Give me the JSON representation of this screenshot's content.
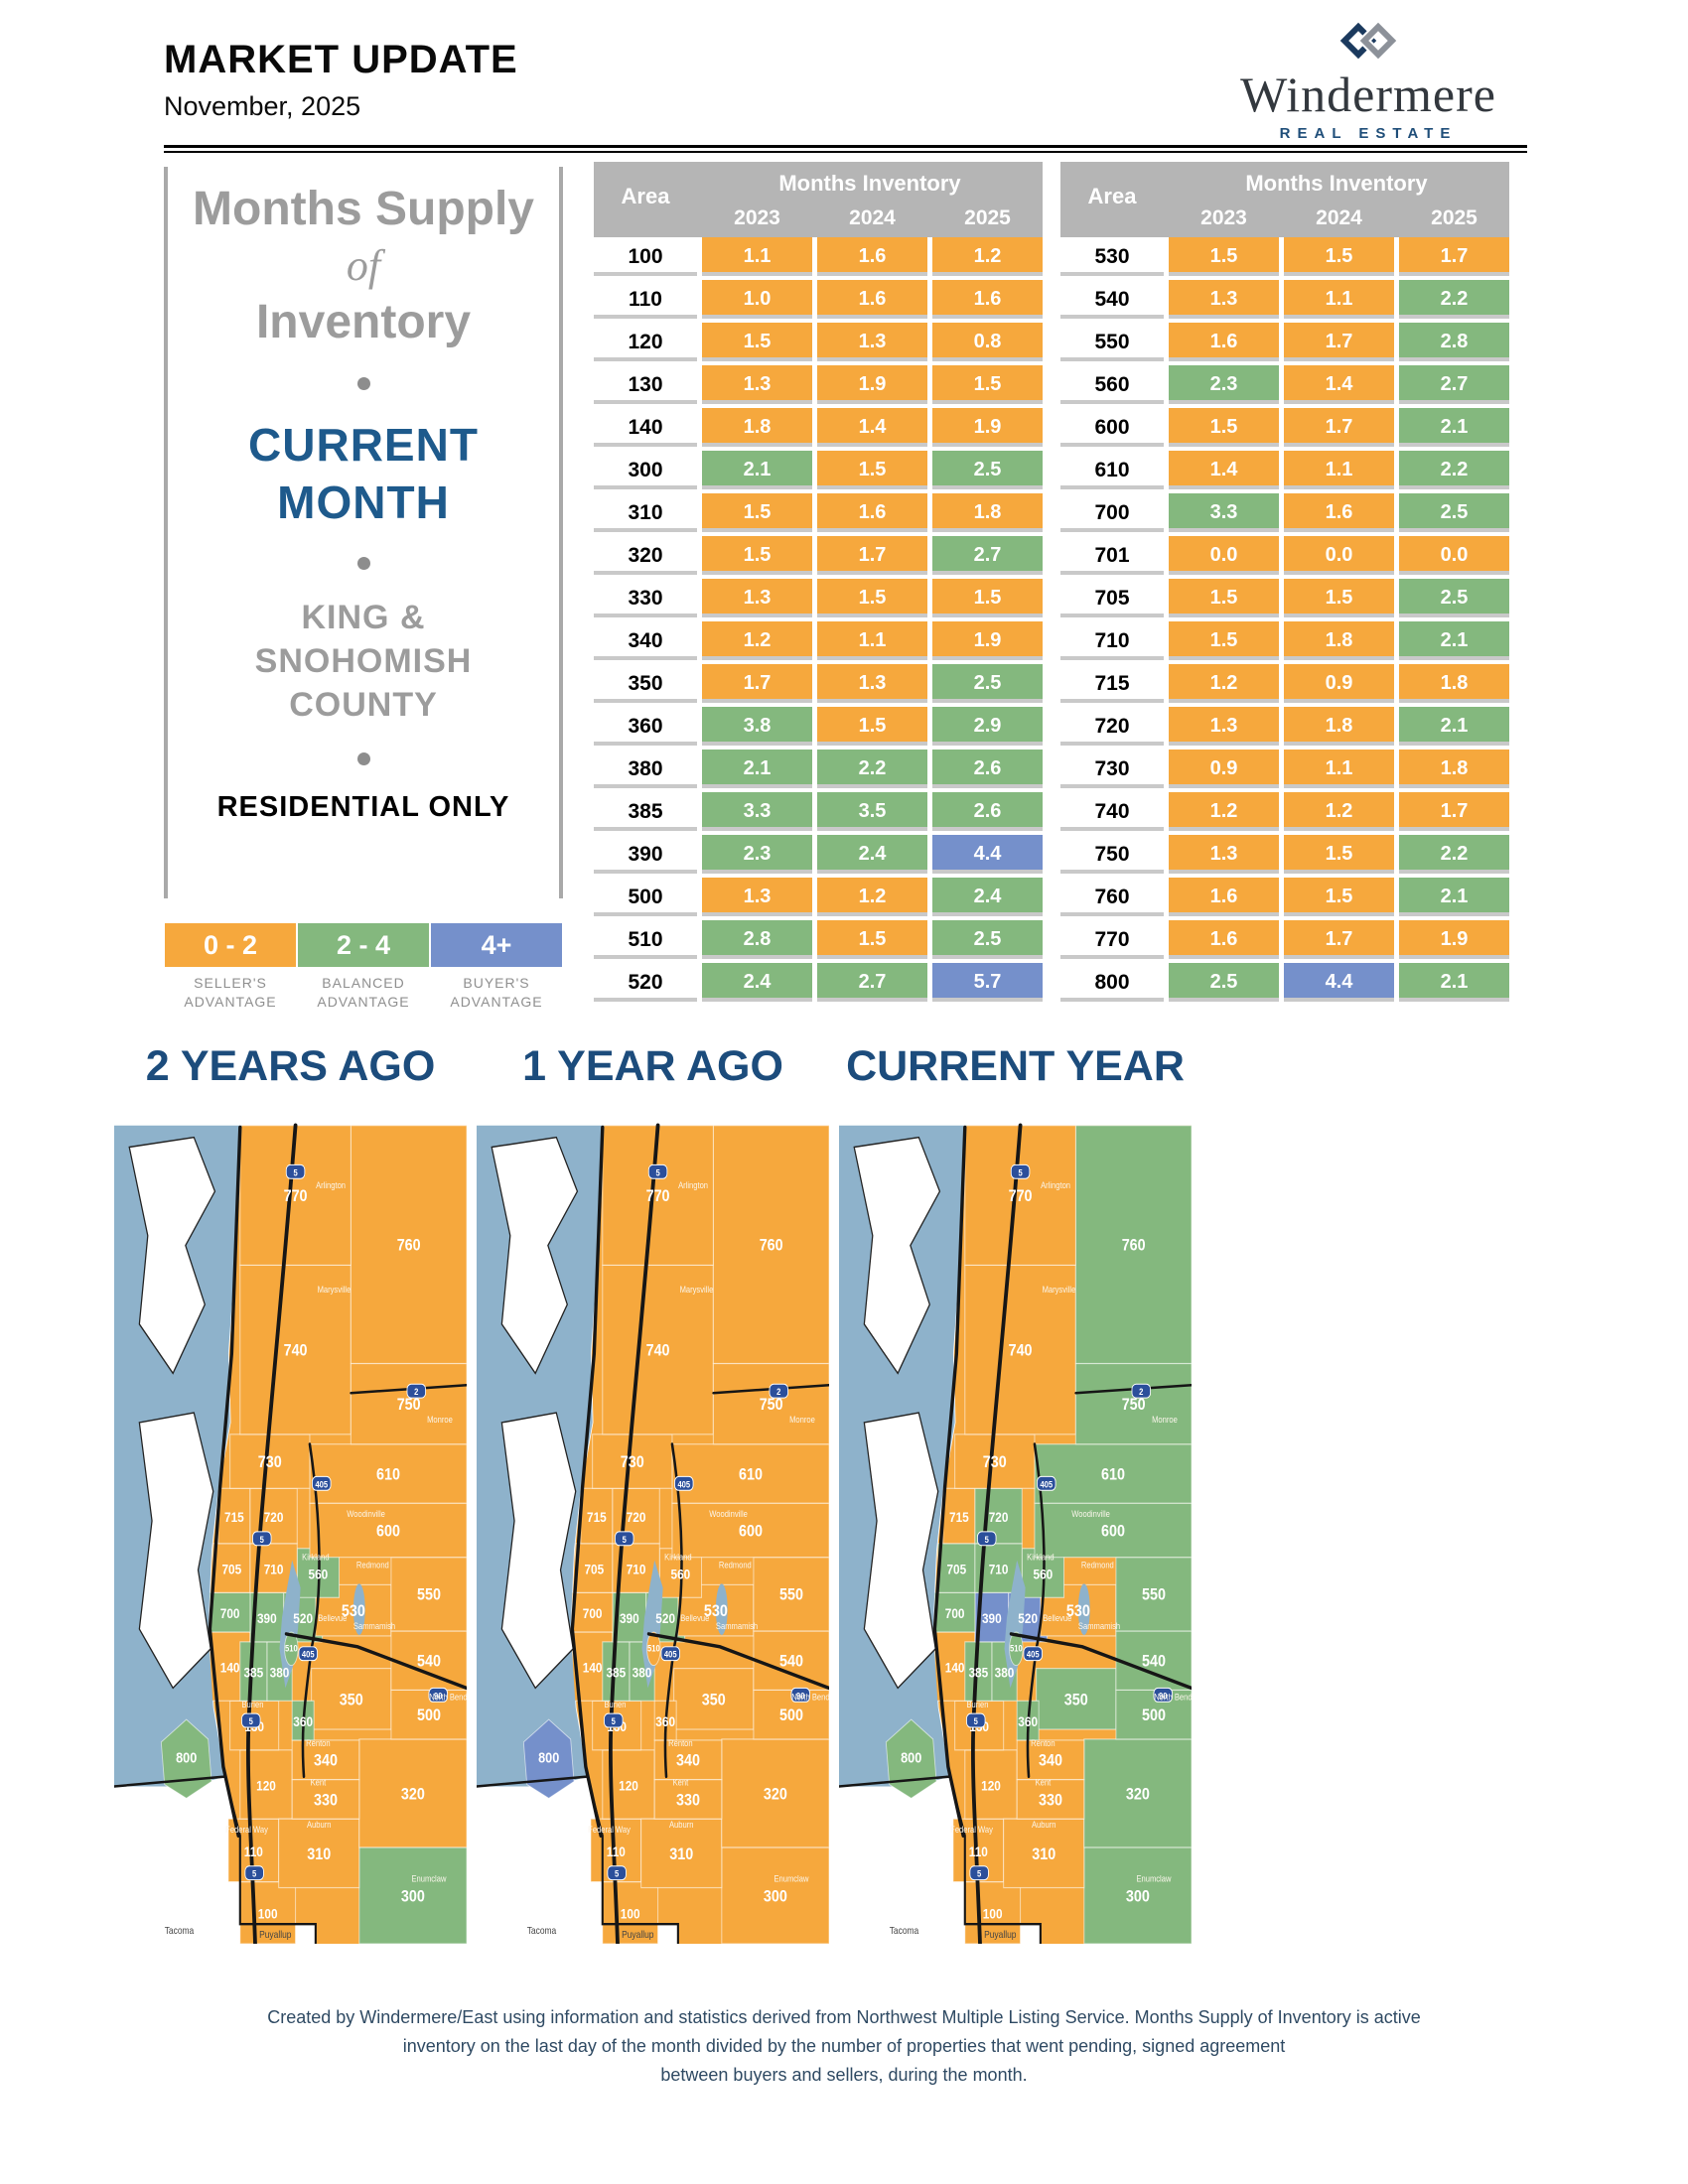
{
  "header": {
    "title": "MARKET UPDATE",
    "date": "November, 2025"
  },
  "logo": {
    "name": "Windermere",
    "tagline": "REAL ESTATE"
  },
  "sidebar": {
    "line1": "Months Supply",
    "line2": "of",
    "line3": "Inventory",
    "highlight1": "CURRENT",
    "highlight2": "MONTH",
    "region1": "KING &",
    "region2": "SNOHOMISH",
    "region3": "COUNTY",
    "note": "RESIDENTIAL ONLY"
  },
  "legend": [
    {
      "range": "0 - 2",
      "label1": "SELLER'S",
      "label2": "ADVANTAGE",
      "color": "#F6A83D"
    },
    {
      "range": "2 - 4",
      "label1": "BALANCED",
      "label2": "ADVANTAGE",
      "color": "#84B87E"
    },
    {
      "range": "4+",
      "label1": "BUYER'S",
      "label2": "ADVANTAGE",
      "color": "#7590CB"
    }
  ],
  "colors": {
    "seller": "#F6A83D",
    "balanced": "#84B87E",
    "buyer": "#7590CB",
    "water": "#8EB2CB"
  },
  "table": {
    "area_header": "Area",
    "group_header": "Months Inventory",
    "years": [
      "2023",
      "2024",
      "2025"
    ],
    "left_rows": [
      {
        "area": "100",
        "values": [
          1.1,
          1.6,
          1.2
        ]
      },
      {
        "area": "110",
        "values": [
          1.0,
          1.6,
          1.6
        ]
      },
      {
        "area": "120",
        "values": [
          1.5,
          1.3,
          0.8
        ]
      },
      {
        "area": "130",
        "values": [
          1.3,
          1.9,
          1.5
        ]
      },
      {
        "area": "140",
        "values": [
          1.8,
          1.4,
          1.9
        ]
      },
      {
        "area": "300",
        "values": [
          2.1,
          1.5,
          2.5
        ]
      },
      {
        "area": "310",
        "values": [
          1.5,
          1.6,
          1.8
        ]
      },
      {
        "area": "320",
        "values": [
          1.5,
          1.7,
          2.7
        ]
      },
      {
        "area": "330",
        "values": [
          1.3,
          1.5,
          1.5
        ]
      },
      {
        "area": "340",
        "values": [
          1.2,
          1.1,
          1.9
        ]
      },
      {
        "area": "350",
        "values": [
          1.7,
          1.3,
          2.5
        ]
      },
      {
        "area": "360",
        "values": [
          3.8,
          1.5,
          2.9
        ]
      },
      {
        "area": "380",
        "values": [
          2.1,
          2.2,
          2.6
        ]
      },
      {
        "area": "385",
        "values": [
          3.3,
          3.5,
          2.6
        ]
      },
      {
        "area": "390",
        "values": [
          2.3,
          2.4,
          4.4
        ]
      },
      {
        "area": "500",
        "values": [
          1.3,
          1.2,
          2.4
        ]
      },
      {
        "area": "510",
        "values": [
          2.8,
          1.5,
          2.5
        ]
      },
      {
        "area": "520",
        "values": [
          2.4,
          2.7,
          5.7
        ]
      }
    ],
    "right_rows": [
      {
        "area": "530",
        "values": [
          1.5,
          1.5,
          1.7
        ]
      },
      {
        "area": "540",
        "values": [
          1.3,
          1.1,
          2.2
        ]
      },
      {
        "area": "550",
        "values": [
          1.6,
          1.7,
          2.8
        ]
      },
      {
        "area": "560",
        "values": [
          2.3,
          1.4,
          2.7
        ]
      },
      {
        "area": "600",
        "values": [
          1.5,
          1.7,
          2.1
        ]
      },
      {
        "area": "610",
        "values": [
          1.4,
          1.1,
          2.2
        ]
      },
      {
        "area": "700",
        "values": [
          3.3,
          1.6,
          2.5
        ]
      },
      {
        "area": "701",
        "values": [
          0.0,
          0.0,
          0.0
        ]
      },
      {
        "area": "705",
        "values": [
          1.5,
          1.5,
          2.5
        ]
      },
      {
        "area": "710",
        "values": [
          1.5,
          1.8,
          2.1
        ]
      },
      {
        "area": "715",
        "values": [
          1.2,
          0.9,
          1.8
        ]
      },
      {
        "area": "720",
        "values": [
          1.3,
          1.8,
          2.1
        ]
      },
      {
        "area": "730",
        "values": [
          0.9,
          1.1,
          1.8
        ]
      },
      {
        "area": "740",
        "values": [
          1.2,
          1.2,
          1.7
        ]
      },
      {
        "area": "750",
        "values": [
          1.3,
          1.5,
          2.2
        ]
      },
      {
        "area": "760",
        "values": [
          1.6,
          1.5,
          2.1
        ]
      },
      {
        "area": "770",
        "values": [
          1.6,
          1.7,
          1.9
        ]
      },
      {
        "area": "800",
        "values": [
          2.5,
          4.4,
          2.1
        ]
      }
    ]
  },
  "maps": {
    "titles": [
      "2 YEARS AGO",
      "1 YEAR AGO",
      "CURRENT YEAR"
    ],
    "cities": [
      "Arlington",
      "Marysville",
      "Monroe",
      "Woodinville",
      "Redmond",
      "Kirkland",
      "Bellevue",
      "Sammamish",
      "Burien",
      "Renton",
      "Kent",
      "Auburn",
      "Federal Way",
      "Enumclaw",
      "North Bend",
      "Tacoma",
      "Puyallup"
    ],
    "shields": [
      "5",
      "2",
      "405",
      "5",
      "405",
      "90",
      "5",
      "5"
    ]
  },
  "footer": {
    "line1": "Created by Windermere/East using information and statistics derived from Northwest Multiple Listing Service. Months Supply of Inventory is active",
    "line2": "inventory on the last day of the month divided by the number of properties that went pending, signed agreement",
    "line3": "between buyers and sellers, during the month."
  }
}
